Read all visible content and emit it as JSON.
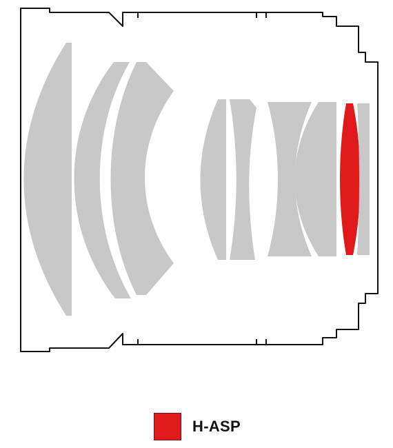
{
  "diagram": {
    "outline_color": "#111111",
    "lens_color": "#c8c8c8",
    "highlight_color": "#e0191b"
  },
  "legend": {
    "label": "H-ASP",
    "swatch_color": "#e0191b"
  }
}
